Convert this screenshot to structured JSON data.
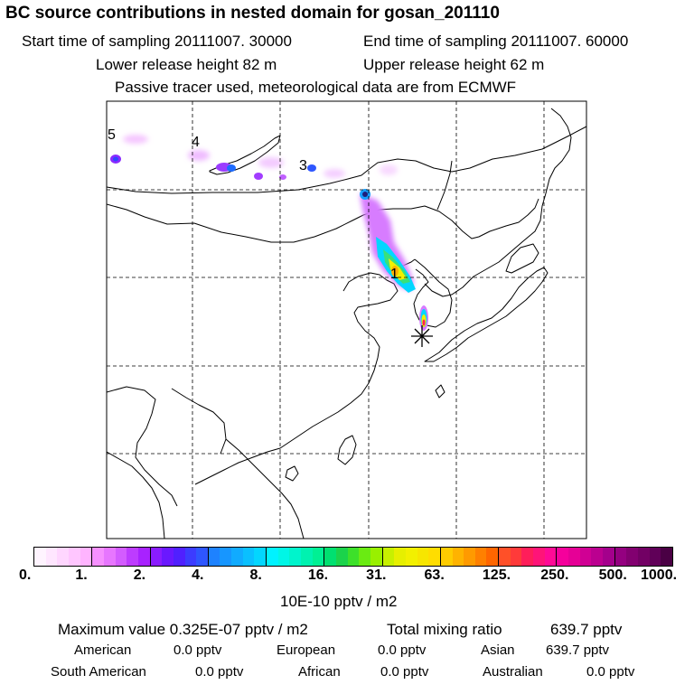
{
  "header": {
    "title": "BC  source contributions in nested domain for gosan_201110",
    "start_label": "Start time of sampling 20111007. 30000",
    "end_label": "End time of sampling 20111007. 60000",
    "lower_label": "Lower release height   82 m",
    "upper_label": "Upper release height   62 m",
    "tracer_note": "Passive tracer used, meteorological data are from ECMWF"
  },
  "map": {
    "source_labels": [
      "5",
      "4",
      "3",
      "1"
    ],
    "receptor_symbol": "*",
    "colors": {
      "land_outline": "#000000",
      "grid": "#000000"
    }
  },
  "colorbar": {
    "tick_labels": [
      "0.",
      "1.",
      "2.",
      "4.",
      "8.",
      "16.",
      "31.",
      "63.",
      "125.",
      "250.",
      "500.",
      "1000."
    ],
    "colors": [
      [
        "#fff4ff",
        "#ffe6ff",
        "#ffd6ff",
        "#ffc6ff",
        "#ffb4ff"
      ],
      [
        "#f690ff",
        "#e776ff",
        "#d35cff",
        "#bd3cff",
        "#a822ff"
      ],
      [
        "#8a1cff",
        "#6a18ff",
        "#5020ff",
        "#3c3cff",
        "#2e56ff"
      ],
      [
        "#1e82ff",
        "#1796ff",
        "#11abff",
        "#0ac0ff",
        "#03d6ff"
      ],
      [
        "#00f2ff",
        "#00f6e6",
        "#00f4cc",
        "#00f2b0",
        "#00f094"
      ],
      [
        "#00e070",
        "#1bd34b",
        "#3de02a",
        "#6aeb12",
        "#99f000"
      ],
      [
        "#c7f000",
        "#e6ef00",
        "#f2f000",
        "#f7e600",
        "#ffdd00"
      ],
      [
        "#ffcc00",
        "#ffb300",
        "#ff9a00",
        "#ff8000",
        "#ff6600"
      ],
      [
        "#ff5028",
        "#ff3a3a",
        "#ff1e5a",
        "#ff1478",
        "#ff0a96"
      ],
      [
        "#f5009c",
        "#e60096",
        "#d00094",
        "#bb0090",
        "#a4008c"
      ],
      [
        "#940080",
        "#820070",
        "#720064",
        "#600058",
        "#4a0044"
      ]
    ]
  },
  "units_label": "10E-10 pptv / m2",
  "stats": {
    "max_label": "Maximum value  0.325E-07 pptv / m2",
    "total_label": "Total mixing ratio",
    "total_value": "639.7 pptv",
    "regions": [
      {
        "name": "American",
        "value": "0.0 pptv"
      },
      {
        "name": "European",
        "value": "0.0 pptv"
      },
      {
        "name": "Asian",
        "value": "639.7 pptv"
      },
      {
        "name": "South American",
        "value": "0.0 pptv"
      },
      {
        "name": "African",
        "value": "0.0 pptv"
      },
      {
        "name": "Australian",
        "value": "0.0 pptv"
      }
    ]
  }
}
